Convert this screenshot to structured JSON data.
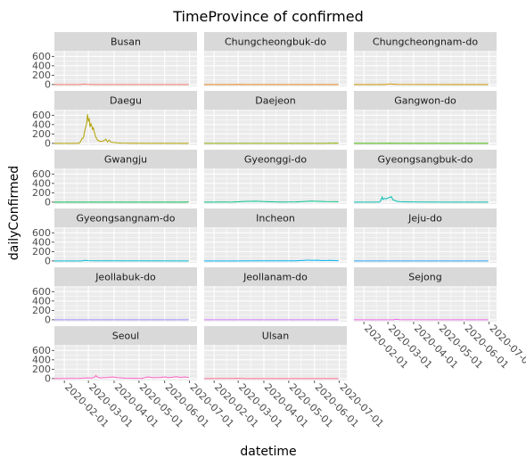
{
  "chart_data": {
    "type": "line",
    "title": "TimeProvince of confirmed",
    "xlabel": "datetime",
    "ylabel": "dailyConfirmed",
    "x_range": [
      "2020-01-20",
      "2020-07-10"
    ],
    "x_ticks": [
      "2020-02-01",
      "2020-03-01",
      "2020-04-01",
      "2020-05-01",
      "2020-06-01",
      "2020-07-01"
    ],
    "ylim": [
      -40,
      720
    ],
    "y_ticks": [
      0,
      200,
      400,
      600
    ],
    "grid": true,
    "facets": "wrap 3 columns",
    "series": [
      {
        "name": "Busan",
        "color": "#F8766D",
        "points": [
          [
            "2020-01-20",
            0
          ],
          [
            "2020-02-21",
            0
          ],
          [
            "2020-02-23",
            8
          ],
          [
            "2020-02-25",
            10
          ],
          [
            "2020-02-27",
            5
          ],
          [
            "2020-03-02",
            3
          ],
          [
            "2020-03-12",
            1
          ],
          [
            "2020-04-01",
            0
          ],
          [
            "2020-06-30",
            0
          ]
        ]
      },
      {
        "name": "Chungcheongbuk-do",
        "color": "#E7851E",
        "points": [
          [
            "2020-01-20",
            0
          ],
          [
            "2020-02-25",
            0
          ],
          [
            "2020-03-01",
            2
          ],
          [
            "2020-03-10",
            1
          ],
          [
            "2020-06-30",
            0
          ]
        ]
      },
      {
        "name": "Chungcheongnam-do",
        "color": "#D09400",
        "points": [
          [
            "2020-01-20",
            0
          ],
          [
            "2020-02-26",
            0
          ],
          [
            "2020-03-01",
            4
          ],
          [
            "2020-03-04",
            15
          ],
          [
            "2020-03-07",
            8
          ],
          [
            "2020-03-12",
            2
          ],
          [
            "2020-06-30",
            0
          ]
        ]
      },
      {
        "name": "Daegu",
        "color": "#B2A100",
        "points": [
          [
            "2020-01-20",
            0
          ],
          [
            "2020-02-17",
            0
          ],
          [
            "2020-02-18",
            1
          ],
          [
            "2020-02-20",
            20
          ],
          [
            "2020-02-22",
            95
          ],
          [
            "2020-02-24",
            120
          ],
          [
            "2020-02-26",
            300
          ],
          [
            "2020-02-28",
            430
          ],
          [
            "2020-02-29",
            620
          ],
          [
            "2020-03-01",
            480
          ],
          [
            "2020-03-02",
            520
          ],
          [
            "2020-03-03",
            350
          ],
          [
            "2020-03-04",
            420
          ],
          [
            "2020-03-05",
            380
          ],
          [
            "2020-03-06",
            300
          ],
          [
            "2020-03-07",
            330
          ],
          [
            "2020-03-08",
            250
          ],
          [
            "2020-03-10",
            130
          ],
          [
            "2020-03-12",
            70
          ],
          [
            "2020-03-14",
            50
          ],
          [
            "2020-03-16",
            40
          ],
          [
            "2020-03-18",
            45
          ],
          [
            "2020-03-20",
            60
          ],
          [
            "2020-03-22",
            90
          ],
          [
            "2020-03-24",
            30
          ],
          [
            "2020-03-26",
            70
          ],
          [
            "2020-03-28",
            30
          ],
          [
            "2020-03-31",
            20
          ],
          [
            "2020-04-05",
            10
          ],
          [
            "2020-04-10",
            5
          ],
          [
            "2020-04-20",
            2
          ],
          [
            "2020-06-30",
            0
          ]
        ]
      },
      {
        "name": "Daejeon",
        "color": "#89AC00",
        "points": [
          [
            "2020-01-20",
            0
          ],
          [
            "2020-06-15",
            0
          ],
          [
            "2020-06-18",
            6
          ],
          [
            "2020-06-22",
            3
          ],
          [
            "2020-06-28",
            5
          ],
          [
            "2020-06-30",
            2
          ]
        ]
      },
      {
        "name": "Gangwon-do",
        "color": "#45B500",
        "points": [
          [
            "2020-01-20",
            0
          ],
          [
            "2020-02-28",
            0
          ],
          [
            "2020-03-02",
            3
          ],
          [
            "2020-03-10",
            1
          ],
          [
            "2020-06-30",
            0
          ]
        ]
      },
      {
        "name": "Gwangju",
        "color": "#00BC51",
        "points": [
          [
            "2020-01-20",
            0
          ],
          [
            "2020-02-04",
            1
          ],
          [
            "2020-02-10",
            0
          ],
          [
            "2020-06-27",
            0
          ],
          [
            "2020-06-29",
            4
          ],
          [
            "2020-06-30",
            6
          ]
        ]
      },
      {
        "name": "Gyeonggi-do",
        "color": "#00C087",
        "points": [
          [
            "2020-01-20",
            0
          ],
          [
            "2020-02-24",
            2
          ],
          [
            "2020-03-01",
            8
          ],
          [
            "2020-03-08",
            15
          ],
          [
            "2020-03-15",
            18
          ],
          [
            "2020-03-22",
            20
          ],
          [
            "2020-03-29",
            15
          ],
          [
            "2020-04-05",
            10
          ],
          [
            "2020-04-20",
            3
          ],
          [
            "2020-05-10",
            5
          ],
          [
            "2020-05-28",
            22
          ],
          [
            "2020-06-05",
            18
          ],
          [
            "2020-06-15",
            12
          ],
          [
            "2020-06-30",
            10
          ]
        ]
      },
      {
        "name": "Gyeongsangbuk-do",
        "color": "#00C0B2",
        "points": [
          [
            "2020-01-20",
            0
          ],
          [
            "2020-02-19",
            0
          ],
          [
            "2020-02-21",
            20
          ],
          [
            "2020-02-23",
            110
          ],
          [
            "2020-02-24",
            60
          ],
          [
            "2020-02-26",
            80
          ],
          [
            "2020-02-28",
            70
          ],
          [
            "2020-03-01",
            90
          ],
          [
            "2020-03-03",
            100
          ],
          [
            "2020-03-05",
            120
          ],
          [
            "2020-03-07",
            50
          ],
          [
            "2020-03-09",
            40
          ],
          [
            "2020-03-11",
            20
          ],
          [
            "2020-03-15",
            10
          ],
          [
            "2020-03-25",
            5
          ],
          [
            "2020-04-10",
            2
          ],
          [
            "2020-06-30",
            0
          ]
        ]
      },
      {
        "name": "Gyeongsangnam-do",
        "color": "#00BCD6",
        "points": [
          [
            "2020-01-20",
            0
          ],
          [
            "2020-02-21",
            0
          ],
          [
            "2020-02-24",
            8
          ],
          [
            "2020-02-26",
            12
          ],
          [
            "2020-03-01",
            6
          ],
          [
            "2020-03-10",
            2
          ],
          [
            "2020-06-30",
            0
          ]
        ]
      },
      {
        "name": "Incheon",
        "color": "#00B3F2",
        "points": [
          [
            "2020-01-20",
            0
          ],
          [
            "2020-03-01",
            1
          ],
          [
            "2020-03-20",
            3
          ],
          [
            "2020-05-09",
            2
          ],
          [
            "2020-05-25",
            18
          ],
          [
            "2020-05-28",
            12
          ],
          [
            "2020-06-05",
            15
          ],
          [
            "2020-06-10",
            8
          ],
          [
            "2020-06-20",
            12
          ],
          [
            "2020-06-30",
            4
          ]
        ]
      },
      {
        "name": "Jeju-do",
        "color": "#29A3FF",
        "points": [
          [
            "2020-01-20",
            0
          ],
          [
            "2020-02-21",
            1
          ],
          [
            "2020-03-01",
            0
          ],
          [
            "2020-06-30",
            0
          ]
        ]
      },
      {
        "name": "Jeollabuk-do",
        "color": "#9C8DFF",
        "points": [
          [
            "2020-01-20",
            0
          ],
          [
            "2020-02-01",
            1
          ],
          [
            "2020-02-10",
            0
          ],
          [
            "2020-06-30",
            1
          ]
        ]
      },
      {
        "name": "Jeollanam-do",
        "color": "#D277FF",
        "points": [
          [
            "2020-01-20",
            0
          ],
          [
            "2020-02-20",
            1
          ],
          [
            "2020-03-05",
            0
          ],
          [
            "2020-06-30",
            0
          ]
        ]
      },
      {
        "name": "Sejong",
        "color": "#F166E8",
        "points": [
          [
            "2020-01-20",
            0
          ],
          [
            "2020-03-08",
            0
          ],
          [
            "2020-03-10",
            10
          ],
          [
            "2020-03-12",
            8
          ],
          [
            "2020-03-15",
            2
          ],
          [
            "2020-06-30",
            0
          ]
        ]
      },
      {
        "name": "Seoul",
        "color": "#FF61C7",
        "points": [
          [
            "2020-01-20",
            0
          ],
          [
            "2020-01-30",
            2
          ],
          [
            "2020-02-20",
            5
          ],
          [
            "2020-02-26",
            12
          ],
          [
            "2020-03-01",
            15
          ],
          [
            "2020-03-05",
            10
          ],
          [
            "2020-03-08",
            25
          ],
          [
            "2020-03-10",
            65
          ],
          [
            "2020-03-12",
            30
          ],
          [
            "2020-03-15",
            15
          ],
          [
            "2020-03-20",
            20
          ],
          [
            "2020-03-25",
            25
          ],
          [
            "2020-03-30",
            35
          ],
          [
            "2020-04-05",
            20
          ],
          [
            "2020-04-15",
            8
          ],
          [
            "2020-04-25",
            5
          ],
          [
            "2020-05-05",
            3
          ],
          [
            "2020-05-09",
            25
          ],
          [
            "2020-05-12",
            35
          ],
          [
            "2020-05-18",
            20
          ],
          [
            "2020-05-27",
            25
          ],
          [
            "2020-06-02",
            35
          ],
          [
            "2020-06-05",
            20
          ],
          [
            "2020-06-10",
            30
          ],
          [
            "2020-06-15",
            40
          ],
          [
            "2020-06-20",
            25
          ],
          [
            "2020-06-25",
            35
          ],
          [
            "2020-06-30",
            25
          ]
        ]
      },
      {
        "name": "Ulsan",
        "color": "#FF6C91",
        "points": [
          [
            "2020-01-20",
            0
          ],
          [
            "2020-02-23",
            2
          ],
          [
            "2020-03-01",
            4
          ],
          [
            "2020-03-10",
            1
          ],
          [
            "2020-06-30",
            0
          ]
        ]
      }
    ]
  }
}
